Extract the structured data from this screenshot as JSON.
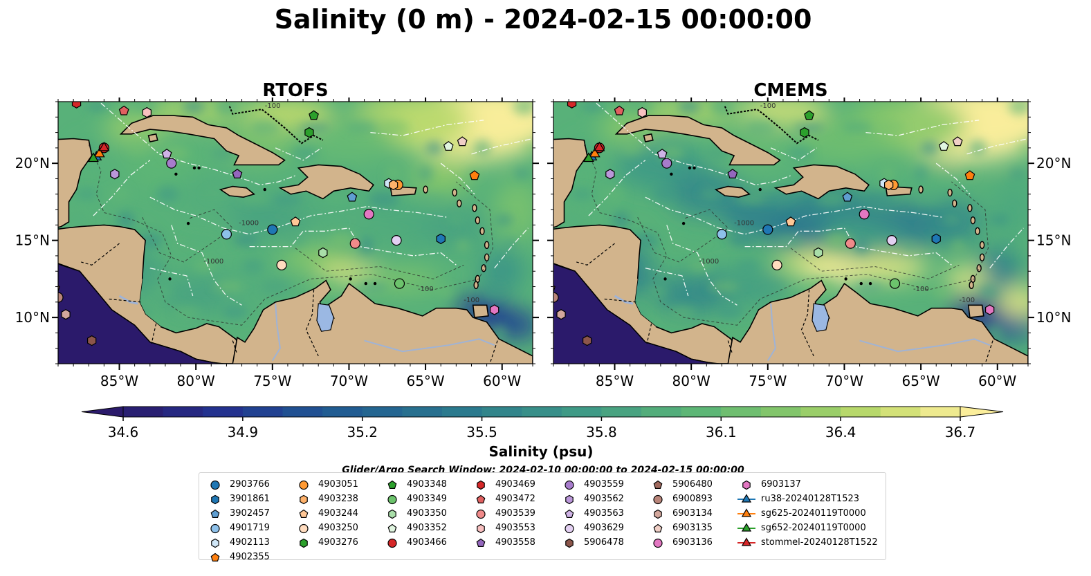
{
  "figure": {
    "title": "Salinity (0 m) - 2024-02-15 00:00:00",
    "search_window": "Glider/Argo Search Window: 2024-02-10 00:00:00 to 2024-02-15 00:00:00"
  },
  "chart_data": [
    {
      "type": "heatmap",
      "title": "RTOFS",
      "xlim": [
        -89,
        -58
      ],
      "ylim": [
        7,
        24
      ],
      "x_ticks": [
        "85°W",
        "80°W",
        "75°W",
        "70°W",
        "65°W",
        "60°W"
      ],
      "y_ticks": [
        "20°N",
        "15°N",
        "10°N"
      ],
      "y_tick_side": "left",
      "variable": "Salinity (0 m)",
      "value_range": [
        34.6,
        36.7
      ],
      "field_summary": "Mostly 35.9–36.2 psu across the Caribbean basin; fresher (<34.7) Pacific and Gulf of Paria/Orinoco plume; saltier (36.5–36.7) north of Greater Antilles and off Venezuela",
      "contour_labels": [
        "-100",
        "-1000"
      ]
    },
    {
      "type": "heatmap",
      "title": "CMEMS",
      "xlim": [
        -89,
        -58
      ],
      "ylim": [
        7,
        24
      ],
      "x_ticks": [
        "85°W",
        "80°W",
        "75°W",
        "70°W",
        "65°W",
        "60°W"
      ],
      "y_ticks": [
        "20°N",
        "15°N",
        "10°N"
      ],
      "y_tick_side": "right",
      "variable": "Salinity (0 m)",
      "value_range": [
        34.6,
        36.7
      ],
      "field_summary": "Fresher eddies (35.3–35.6) in the central and eastern Caribbean; saline band (36.5–36.7) near 13–14°N off Colombia/Venezuela",
      "contour_labels": [
        "-100",
        "-1000"
      ]
    }
  ],
  "colorbar": {
    "label": "Salinity (psu)",
    "min": 34.6,
    "max": 36.7,
    "step": 0.1,
    "ticks": [
      "34.6",
      "34.9",
      "35.2",
      "35.5",
      "35.8",
      "36.1",
      "36.4",
      "36.7"
    ],
    "extend": "both"
  },
  "platforms": [
    {
      "id": "2903766",
      "marker": "circle",
      "color": "#1f77b4",
      "lon": -75.0,
      "lat": 15.7
    },
    {
      "id": "3901861",
      "marker": "hexagon",
      "color": "#1f77b4",
      "lon": -64.0,
      "lat": 15.1
    },
    {
      "id": "3902457",
      "marker": "pentagon",
      "color": "#5f9ed1",
      "lon": -69.8,
      "lat": 17.8
    },
    {
      "id": "4901719",
      "marker": "circle",
      "color": "#8ec1ea",
      "lon": -78.0,
      "lat": 15.4
    },
    {
      "id": "4902113",
      "marker": "hexagon",
      "color": "#cfe6f7",
      "lon": -67.4,
      "lat": 18.7
    },
    {
      "id": "4902355",
      "marker": "pentagon",
      "color": "#ff7f0e",
      "lon": -61.8,
      "lat": 19.2
    },
    {
      "id": "4903051",
      "marker": "circle",
      "color": "#ff9a33",
      "lon": -66.8,
      "lat": 18.6
    },
    {
      "id": "4903238",
      "marker": "hexagon",
      "color": "#ffb26b",
      "lon": -67.1,
      "lat": 18.6
    },
    {
      "id": "4903244",
      "marker": "pentagon",
      "color": "#ffc796",
      "lon": -73.5,
      "lat": 16.2
    },
    {
      "id": "4903250",
      "marker": "circle",
      "color": "#ffdcbf",
      "lon": -74.4,
      "lat": 13.4
    },
    {
      "id": "4903276",
      "marker": "hexagon",
      "color": "#2ca02c",
      "lon": -72.6,
      "lat": 22.0
    },
    {
      "id": "4903348",
      "marker": "pentagon",
      "color": "#2ca02c",
      "lon": -72.3,
      "lat": 23.1
    },
    {
      "id": "4903349",
      "marker": "circle",
      "color": "#6cc36c",
      "lon": -66.7,
      "lat": 12.2
    },
    {
      "id": "4903350",
      "marker": "hexagon",
      "color": "#a9dea9",
      "lon": -71.7,
      "lat": 14.2
    },
    {
      "id": "4903352",
      "marker": "pentagon",
      "color": "#e0f5e0",
      "lon": -63.5,
      "lat": 21.1
    },
    {
      "id": "4903466",
      "marker": "circle",
      "color": "#d62728",
      "lon": -86.0,
      "lat": 21.0
    },
    {
      "id": "4903469",
      "marker": "hexagon",
      "color": "#d62728",
      "lon": -87.8,
      "lat": 23.9
    },
    {
      "id": "4903472",
      "marker": "pentagon",
      "color": "#e06060",
      "lon": -84.7,
      "lat": 23.4
    },
    {
      "id": "4903539",
      "marker": "circle",
      "color": "#f08a8a",
      "lon": -69.6,
      "lat": 14.8
    },
    {
      "id": "4903553",
      "marker": "hexagon",
      "color": "#f8c0c0",
      "lon": -83.2,
      "lat": 23.3
    },
    {
      "id": "4903558",
      "marker": "pentagon",
      "color": "#9467bd",
      "lon": -77.3,
      "lat": 19.3
    },
    {
      "id": "4903559",
      "marker": "circle",
      "color": "#a77ccc",
      "lon": -81.6,
      "lat": 20.0
    },
    {
      "id": "4903562",
      "marker": "hexagon",
      "color": "#bb97da",
      "lon": -85.3,
      "lat": 19.3
    },
    {
      "id": "4903563",
      "marker": "pentagon",
      "color": "#cfb3e6",
      "lon": -81.9,
      "lat": 20.6
    },
    {
      "id": "4903629",
      "marker": "circle",
      "color": "#e3d0f2",
      "lon": -66.9,
      "lat": 15.0
    },
    {
      "id": "5906478",
      "marker": "hexagon",
      "color": "#8c564b",
      "lon": -86.8,
      "lat": 8.5
    },
    {
      "id": "5906480",
      "marker": "pentagon",
      "color": "#a0695d",
      "lon": -89.2,
      "lat": 11.9
    },
    {
      "id": "6900893",
      "marker": "circle",
      "color": "#b9857a",
      "lon": -89.0,
      "lat": 11.3
    },
    {
      "id": "6903134",
      "marker": "hexagon",
      "color": "#d3a79c",
      "lon": -88.5,
      "lat": 10.2
    },
    {
      "id": "6903135",
      "marker": "pentagon",
      "color": "#f0cfc6",
      "lon": -62.6,
      "lat": 21.4
    },
    {
      "id": "6903136",
      "marker": "circle",
      "color": "#e377c2",
      "lon": -68.7,
      "lat": 16.7
    },
    {
      "id": "6903137",
      "marker": "hexagon",
      "color": "#e377c2",
      "lon": -60.5,
      "lat": 10.5
    },
    {
      "id": "ru38-20240128T1523",
      "marker": "triangle",
      "color": "#1f77b4",
      "line": true,
      "lon": -86.5,
      "lat": 20.4
    },
    {
      "id": "sg625-20240119T0000",
      "marker": "triangle",
      "color": "#ff7f0e",
      "line": true,
      "lon": -86.3,
      "lat": 20.6
    },
    {
      "id": "sg652-20240119T0000",
      "marker": "triangle",
      "color": "#2ca02c",
      "line": true,
      "lon": -86.7,
      "lat": 20.3
    },
    {
      "id": "stommel-20240128T1522",
      "marker": "triangle",
      "color": "#d62728",
      "line": true,
      "lon": -86.0,
      "lat": 21.0
    }
  ]
}
